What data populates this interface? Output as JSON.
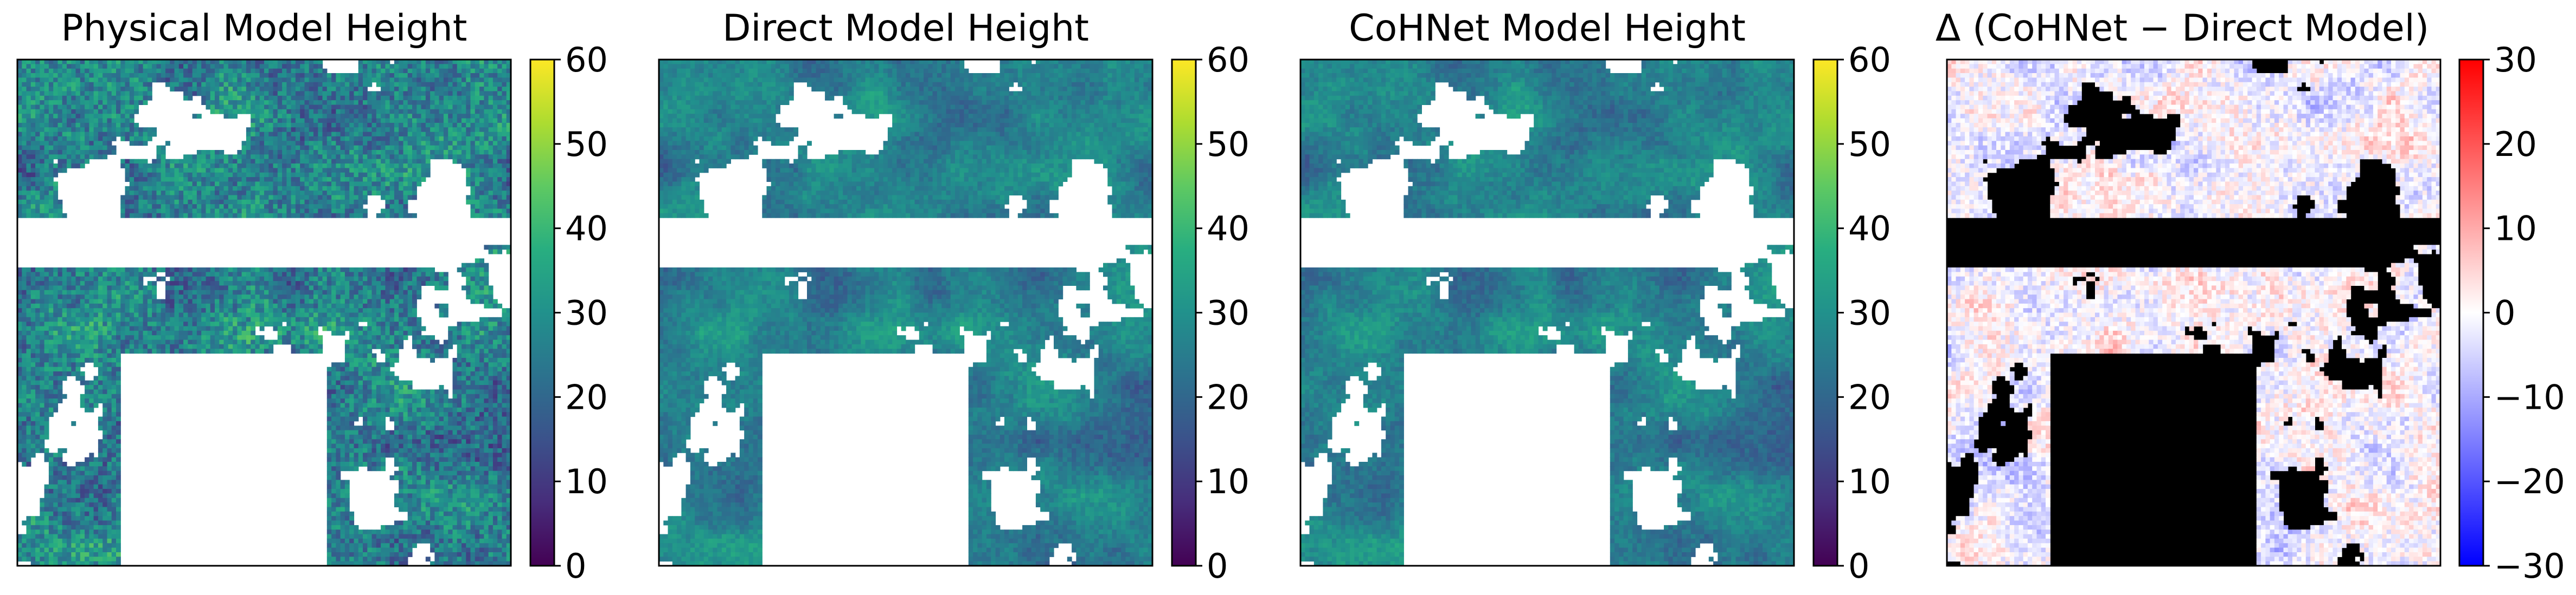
{
  "chart_data": [
    {
      "type": "heatmap",
      "title": "Physical Model Height",
      "colormap": "viridis",
      "clim": [
        0,
        60
      ],
      "colorbar_ticks": [
        "0",
        "10",
        "20",
        "30",
        "40",
        "50",
        "60"
      ],
      "nan_color": "#ffffff"
    },
    {
      "type": "heatmap",
      "title": "Direct Model Height",
      "colormap": "viridis",
      "clim": [
        0,
        60
      ],
      "colorbar_ticks": [
        "0",
        "10",
        "20",
        "30",
        "40",
        "50",
        "60"
      ],
      "nan_color": "#ffffff"
    },
    {
      "type": "heatmap",
      "title": "CoHNet Model Height",
      "colormap": "viridis",
      "clim": [
        0,
        60
      ],
      "colorbar_ticks": [
        "0",
        "10",
        "20",
        "30",
        "40",
        "50",
        "60"
      ],
      "nan_color": "#ffffff"
    },
    {
      "type": "heatmap",
      "title": "Δ (CoHNet − Direct Model)",
      "colormap": "bwr",
      "clim": [
        -30,
        30
      ],
      "colorbar_ticks": [
        "−30",
        "−20",
        "−10",
        "0",
        "10",
        "20",
        "30"
      ],
      "nan_color": "#000000"
    }
  ]
}
